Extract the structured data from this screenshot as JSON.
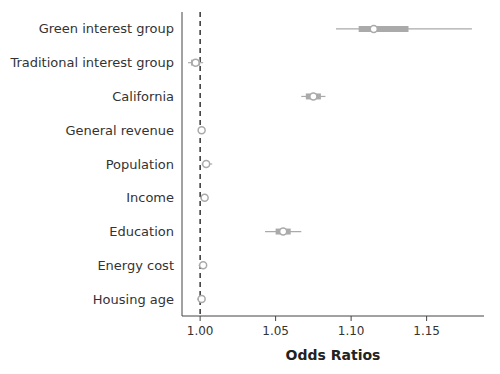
{
  "chart_data": {
    "type": "forest",
    "orientation": "horizontal",
    "x_label": "Odds Ratios",
    "categories": [
      "Green interest group",
      "Traditional interest group",
      "California",
      "General revenue",
      "Population",
      "Income",
      "Education",
      "Energy cost",
      "Housing age"
    ],
    "values": [
      1.115,
      0.997,
      1.075,
      1.001,
      1.004,
      1.003,
      1.055,
      1.002,
      1.001
    ],
    "ci_lower": [
      1.09,
      0.992,
      1.067,
      0.999,
      1.001,
      1.0,
      1.043,
      0.999,
      0.998
    ],
    "ci_upper": [
      1.18,
      1.002,
      1.083,
      1.003,
      1.008,
      1.005,
      1.067,
      1.004,
      1.003
    ],
    "thick_ci_lower": [
      1.105,
      0.994,
      1.07,
      1.0,
      1.002,
      1.001,
      1.05,
      1.001,
      1.0
    ],
    "thick_ci_upper": [
      1.138,
      1.0,
      1.08,
      1.002,
      1.006,
      1.004,
      1.06,
      1.003,
      1.002
    ],
    "reference_line": 1.0,
    "color": "#aaaaaa",
    "xlim": [
      0.988,
      1.188
    ],
    "xticks": [
      {
        "value": 1.0,
        "label": "1.00"
      },
      {
        "value": 1.05,
        "label": "1.05"
      },
      {
        "value": 1.1,
        "label": "1.10"
      },
      {
        "value": 1.15,
        "label": "1.15"
      }
    ],
    "grid": false
  }
}
